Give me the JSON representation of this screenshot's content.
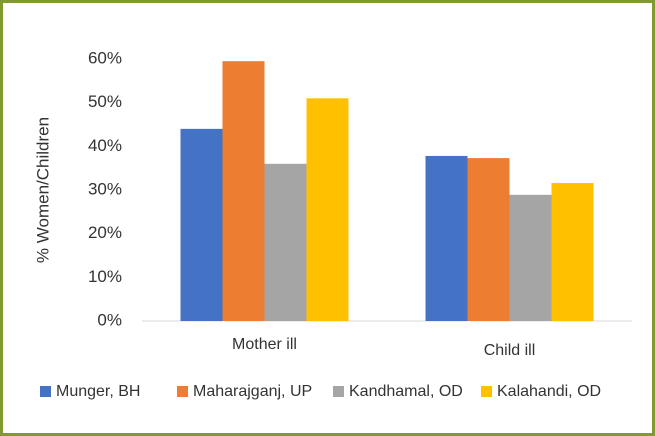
{
  "chart_data": {
    "type": "bar",
    "categories": [
      "Mother ill",
      "Child ill"
    ],
    "y_label": "% Women/Children",
    "series": [
      {
        "name": "Munger, BH",
        "color": "#4472c4",
        "values": [
          44,
          37.8
        ]
      },
      {
        "name": "Maharajganj, UP",
        "color": "#ed7d31",
        "values": [
          59.5,
          37.3
        ]
      },
      {
        "name": "Kandhamal, OD",
        "color": "#a5a5a5",
        "values": [
          36,
          28.9
        ]
      },
      {
        "name": "Kalahandi, OD",
        "color": "#ffc000",
        "values": [
          51,
          31.6
        ]
      }
    ],
    "ylim": [
      0,
      60
    ],
    "yticks": [
      {
        "value": 0,
        "label": "0%"
      },
      {
        "value": 10,
        "label": "10%"
      },
      {
        "value": 20,
        "label": "20%"
      },
      {
        "value": 30,
        "label": "30%"
      },
      {
        "value": 40,
        "label": "40%"
      },
      {
        "value": 50,
        "label": "50%"
      },
      {
        "value": 60,
        "label": "60%"
      }
    ],
    "grid": false,
    "legend": "bottom"
  }
}
